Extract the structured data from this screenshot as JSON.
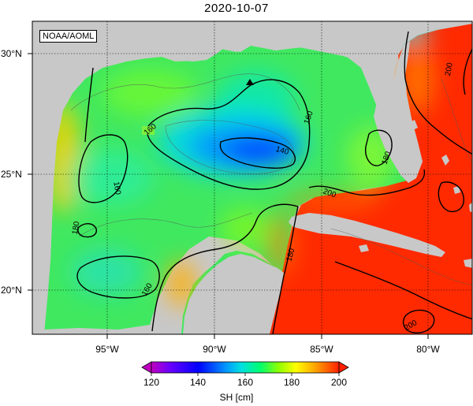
{
  "title": "2020-10-07",
  "credit": "NOAA/AOML",
  "map": {
    "lon_ticks": [
      "95°W",
      "90°W",
      "85°W",
      "80°W"
    ],
    "lat_ticks": [
      "30°N",
      "25°N",
      "20°N"
    ],
    "land_color": "#c8c8c8",
    "contour_labels": [
      "160",
      "160",
      "160",
      "160",
      "140",
      "180",
      "180",
      "180",
      "200",
      "200",
      "200"
    ]
  },
  "colorbar": {
    "label": "SH [cm]",
    "ticks": [
      "120",
      "140",
      "160",
      "180",
      "200"
    ],
    "colors": [
      "#c000c0",
      "#6a00ff",
      "#0000ff",
      "#0099ff",
      "#00e0e0",
      "#00ff70",
      "#90ff00",
      "#ffff00",
      "#ffb000",
      "#ff6000",
      "#ff2000"
    ]
  }
}
